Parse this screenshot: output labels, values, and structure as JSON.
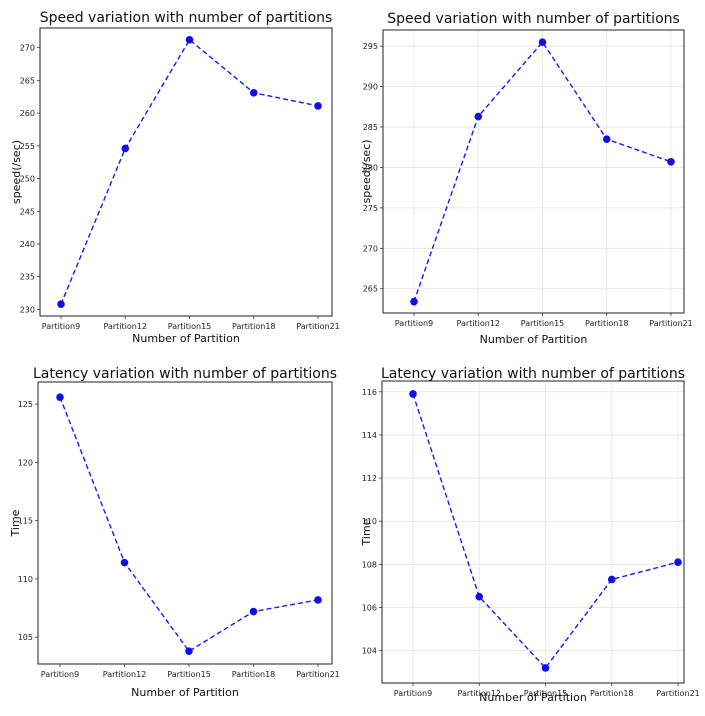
{
  "chart_data": [
    {
      "type": "line",
      "title": "Speed variation with number of partitions",
      "xlabel": "Number of Partition",
      "ylabel": "speed(/sec)",
      "categories": [
        "Partition9",
        "Partition12",
        "Partition15",
        "Partition18",
        "Partition21"
      ],
      "values": [
        230.8,
        254.6,
        271.2,
        263.1,
        261.1
      ],
      "yticks": [
        230,
        235,
        240,
        245,
        250,
        255,
        260,
        265,
        270
      ],
      "ylim": [
        229.0,
        273.0
      ],
      "grid": false,
      "color": "#1a1aee"
    },
    {
      "type": "line",
      "title": "Speed variation with number of partitions",
      "xlabel": "Number of Partition",
      "ylabel": "speed(/sec)",
      "categories": [
        "Partition9",
        "Partition12",
        "Partition15",
        "Partition18",
        "Partition21"
      ],
      "values": [
        263.4,
        286.3,
        295.5,
        283.5,
        280.7
      ],
      "yticks": [
        265,
        270,
        275,
        280,
        285,
        290,
        295
      ],
      "ylim": [
        262.0,
        297.0
      ],
      "grid": true,
      "color": "#1a1aee"
    },
    {
      "type": "line",
      "title": "Latency variation with number of partitions",
      "xlabel": "Number of Partition",
      "ylabel": "Time",
      "categories": [
        "Partition9",
        "Partition12",
        "Partition15",
        "Partition18",
        "Partition21"
      ],
      "values": [
        125.6,
        111.4,
        103.8,
        107.2,
        108.2
      ],
      "yticks": [
        105,
        110,
        115,
        120,
        125
      ],
      "ylim": [
        102.7,
        126.9
      ],
      "grid": false,
      "color": "#1a1aee"
    },
    {
      "type": "line",
      "title": "Latency variation with number of partitions",
      "xlabel": "Number of Partition",
      "ylabel": "Time",
      "categories": [
        "Partition9",
        "Partition12",
        "Partition15",
        "Partition18",
        "Partition21"
      ],
      "values": [
        115.9,
        106.5,
        103.2,
        107.3,
        108.1
      ],
      "yticks": [
        104,
        106,
        108,
        110,
        112,
        114,
        116
      ],
      "ylim": [
        102.5,
        116.5
      ],
      "grid": true,
      "color": "#1a1aee"
    }
  ]
}
